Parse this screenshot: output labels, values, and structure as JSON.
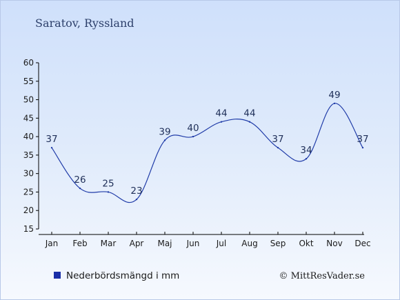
{
  "chart_data": {
    "type": "line",
    "title": "Saratov, Ryssland",
    "categories": [
      "Jan",
      "Feb",
      "Mar",
      "Apr",
      "Maj",
      "Jun",
      "Jul",
      "Aug",
      "Sep",
      "Okt",
      "Nov",
      "Dec"
    ],
    "series": [
      {
        "name": "Nederbördsmängd i mm",
        "values": [
          37,
          26,
          25,
          23,
          39,
          40,
          44,
          44,
          37,
          34,
          49,
          37
        ],
        "color": "#1f3ba8"
      }
    ],
    "ylim": [
      15,
      60
    ],
    "yticks": [
      15,
      20,
      25,
      30,
      35,
      40,
      45,
      50,
      55,
      60
    ],
    "data_labels": true,
    "grid": false,
    "legend_position": "bottom-left",
    "credit": "© MittResVader.se",
    "background_color": "#d6e4fb",
    "axis_color": "#000000"
  }
}
